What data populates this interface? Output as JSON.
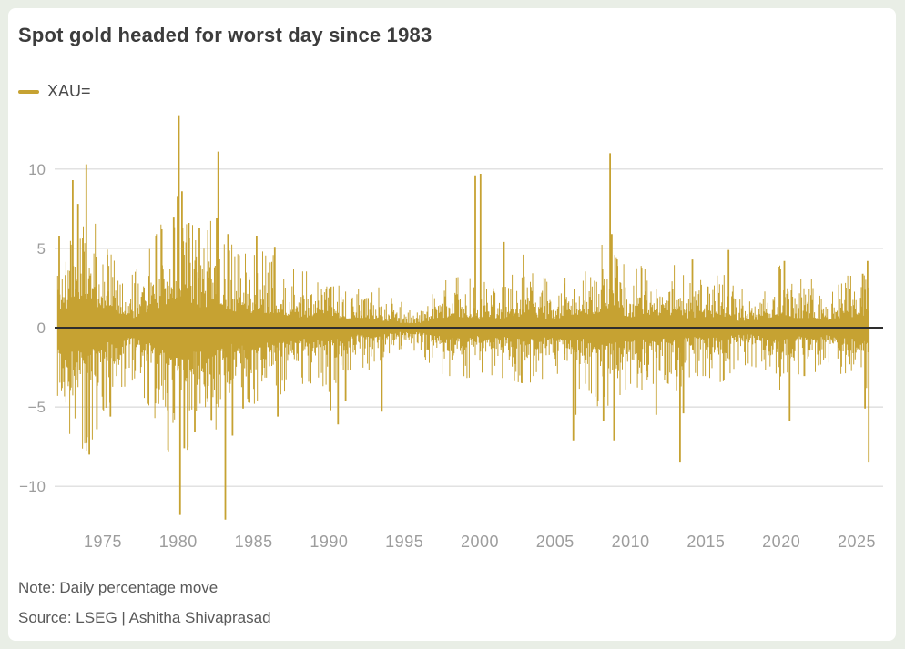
{
  "card": {
    "title": "Spot gold headed for worst day since 1983",
    "legend": {
      "label": "XAU="
    },
    "note": "Note: Daily percentage move",
    "source": "Source: LSEG | Ashitha Shivaprasad"
  },
  "colors": {
    "series": "#c6a232",
    "grid": "#d9d9d9",
    "zero_line": "#2e2e2e",
    "tick_label": "#9d9d9d",
    "frame": "#e9eee6",
    "card_bg": "#ffffff"
  },
  "chart_data": {
    "type": "bar",
    "title": "Spot gold headed for worst day since 1983",
    "series_name": "XAU=",
    "xlabel": "",
    "ylabel": "",
    "unit": "percent (daily move)",
    "x_range": [
      1972.0,
      2025.8
    ],
    "ylim": [
      -12.5,
      13.6
    ],
    "y_ticks": [
      10,
      5,
      0,
      -5,
      -10
    ],
    "y_tick_labels": [
      "10",
      "5",
      "0",
      "−5",
      "−10"
    ],
    "x_ticks": [
      1975,
      1980,
      1985,
      1990,
      1995,
      2000,
      2005,
      2010,
      2015,
      2020,
      2025
    ],
    "x_tick_labels": [
      "1975",
      "1980",
      "1985",
      "1990",
      "1995",
      "2000",
      "2005",
      "2010",
      "2015",
      "2020",
      "2025"
    ],
    "grid": true,
    "zero_line": true,
    "legend_position": "top-left",
    "volatility_envelope": [
      [
        1972,
        1.6
      ],
      [
        1973,
        2.8
      ],
      [
        1974,
        3.0
      ],
      [
        1975,
        2.0
      ],
      [
        1976,
        1.5
      ],
      [
        1977,
        1.2
      ],
      [
        1978,
        1.8
      ],
      [
        1979,
        2.6
      ],
      [
        1980,
        3.8
      ],
      [
        1981,
        2.4
      ],
      [
        1982,
        2.6
      ],
      [
        1983,
        2.4
      ],
      [
        1984,
        1.7
      ],
      [
        1985,
        1.8
      ],
      [
        1986,
        1.8
      ],
      [
        1987,
        1.5
      ],
      [
        1988,
        1.3
      ],
      [
        1989,
        1.3
      ],
      [
        1990,
        1.5
      ],
      [
        1991,
        1.0
      ],
      [
        1992,
        0.85
      ],
      [
        1993,
        1.0
      ],
      [
        1994,
        0.65
      ],
      [
        1995,
        0.5
      ],
      [
        1996,
        0.5
      ],
      [
        1997,
        1.0
      ],
      [
        1998,
        1.1
      ],
      [
        1999,
        1.2
      ],
      [
        2000,
        1.0
      ],
      [
        2001,
        1.1
      ],
      [
        2002,
        1.2
      ],
      [
        2003,
        1.3
      ],
      [
        2004,
        1.2
      ],
      [
        2005,
        1.0
      ],
      [
        2006,
        1.6
      ],
      [
        2007,
        1.3
      ],
      [
        2008,
        2.0
      ],
      [
        2009,
        1.7
      ],
      [
        2010,
        1.3
      ],
      [
        2011,
        1.5
      ],
      [
        2012,
        1.1
      ],
      [
        2013,
        1.5
      ],
      [
        2014,
        1.1
      ],
      [
        2015,
        1.1
      ],
      [
        2016,
        1.3
      ],
      [
        2017,
        0.85
      ],
      [
        2018,
        0.85
      ],
      [
        2019,
        0.95
      ],
      [
        2020,
        1.5
      ],
      [
        2021,
        1.1
      ],
      [
        2022,
        1.1
      ],
      [
        2023,
        0.95
      ],
      [
        2024,
        1.05
      ],
      [
        2025,
        1.4
      ]
    ],
    "notable_moves": [
      {
        "year": 1972.1,
        "pct": 5.8
      },
      {
        "year": 1973.0,
        "pct": 9.3
      },
      {
        "year": 1973.35,
        "pct": 7.8
      },
      {
        "year": 1973.9,
        "pct": 10.3
      },
      {
        "year": 1973.95,
        "pct": -6.9
      },
      {
        "year": 1974.1,
        "pct": -8.0
      },
      {
        "year": 1974.6,
        "pct": -6.4
      },
      {
        "year": 1975.3,
        "pct": 4.6
      },
      {
        "year": 1975.5,
        "pct": -5.6
      },
      {
        "year": 1978.9,
        "pct": 6.2
      },
      {
        "year": 1979.3,
        "pct": -5.2
      },
      {
        "year": 1979.7,
        "pct": 7.0
      },
      {
        "year": 1979.95,
        "pct": 8.3
      },
      {
        "year": 1980.04,
        "pct": 13.4
      },
      {
        "year": 1980.12,
        "pct": -11.8
      },
      {
        "year": 1980.25,
        "pct": 8.6
      },
      {
        "year": 1980.4,
        "pct": -7.6
      },
      {
        "year": 1980.7,
        "pct": 6.6
      },
      {
        "year": 1981.1,
        "pct": -6.6
      },
      {
        "year": 1981.4,
        "pct": 6.3
      },
      {
        "year": 1982.2,
        "pct": -5.8
      },
      {
        "year": 1982.55,
        "pct": 6.9
      },
      {
        "year": 1982.65,
        "pct": 11.1
      },
      {
        "year": 1983.12,
        "pct": -12.1
      },
      {
        "year": 1983.3,
        "pct": 5.9
      },
      {
        "year": 1983.6,
        "pct": -6.8
      },
      {
        "year": 1984.3,
        "pct": -5.1
      },
      {
        "year": 1985.2,
        "pct": 5.8
      },
      {
        "year": 1986.4,
        "pct": 5.1
      },
      {
        "year": 1986.6,
        "pct": -5.6
      },
      {
        "year": 1990.1,
        "pct": -5.2
      },
      {
        "year": 1990.6,
        "pct": -6.1
      },
      {
        "year": 1991.1,
        "pct": -4.6
      },
      {
        "year": 1993.5,
        "pct": -5.3
      },
      {
        "year": 1999.7,
        "pct": 9.6
      },
      {
        "year": 2000.05,
        "pct": 9.7
      },
      {
        "year": 2001.6,
        "pct": 5.4
      },
      {
        "year": 2002.9,
        "pct": 4.6
      },
      {
        "year": 2006.2,
        "pct": -7.1
      },
      {
        "year": 2006.35,
        "pct": -5.5
      },
      {
        "year": 2008.2,
        "pct": -5.9
      },
      {
        "year": 2008.64,
        "pct": 11.0
      },
      {
        "year": 2008.75,
        "pct": 5.9
      },
      {
        "year": 2008.9,
        "pct": -7.1
      },
      {
        "year": 2009.1,
        "pct": 4.3
      },
      {
        "year": 2011.7,
        "pct": -5.5
      },
      {
        "year": 2013.28,
        "pct": -8.5
      },
      {
        "year": 2013.5,
        "pct": -5.4
      },
      {
        "year": 2014.1,
        "pct": 4.3
      },
      {
        "year": 2016.5,
        "pct": 4.9
      },
      {
        "year": 2020.2,
        "pct": 4.2
      },
      {
        "year": 2020.55,
        "pct": -5.9
      },
      {
        "year": 2025.4,
        "pct": 3.4
      },
      {
        "year": 2025.55,
        "pct": -5.1
      },
      {
        "year": 2025.72,
        "pct": 4.2
      },
      {
        "year": 2025.8,
        "pct": -8.5
      }
    ]
  }
}
